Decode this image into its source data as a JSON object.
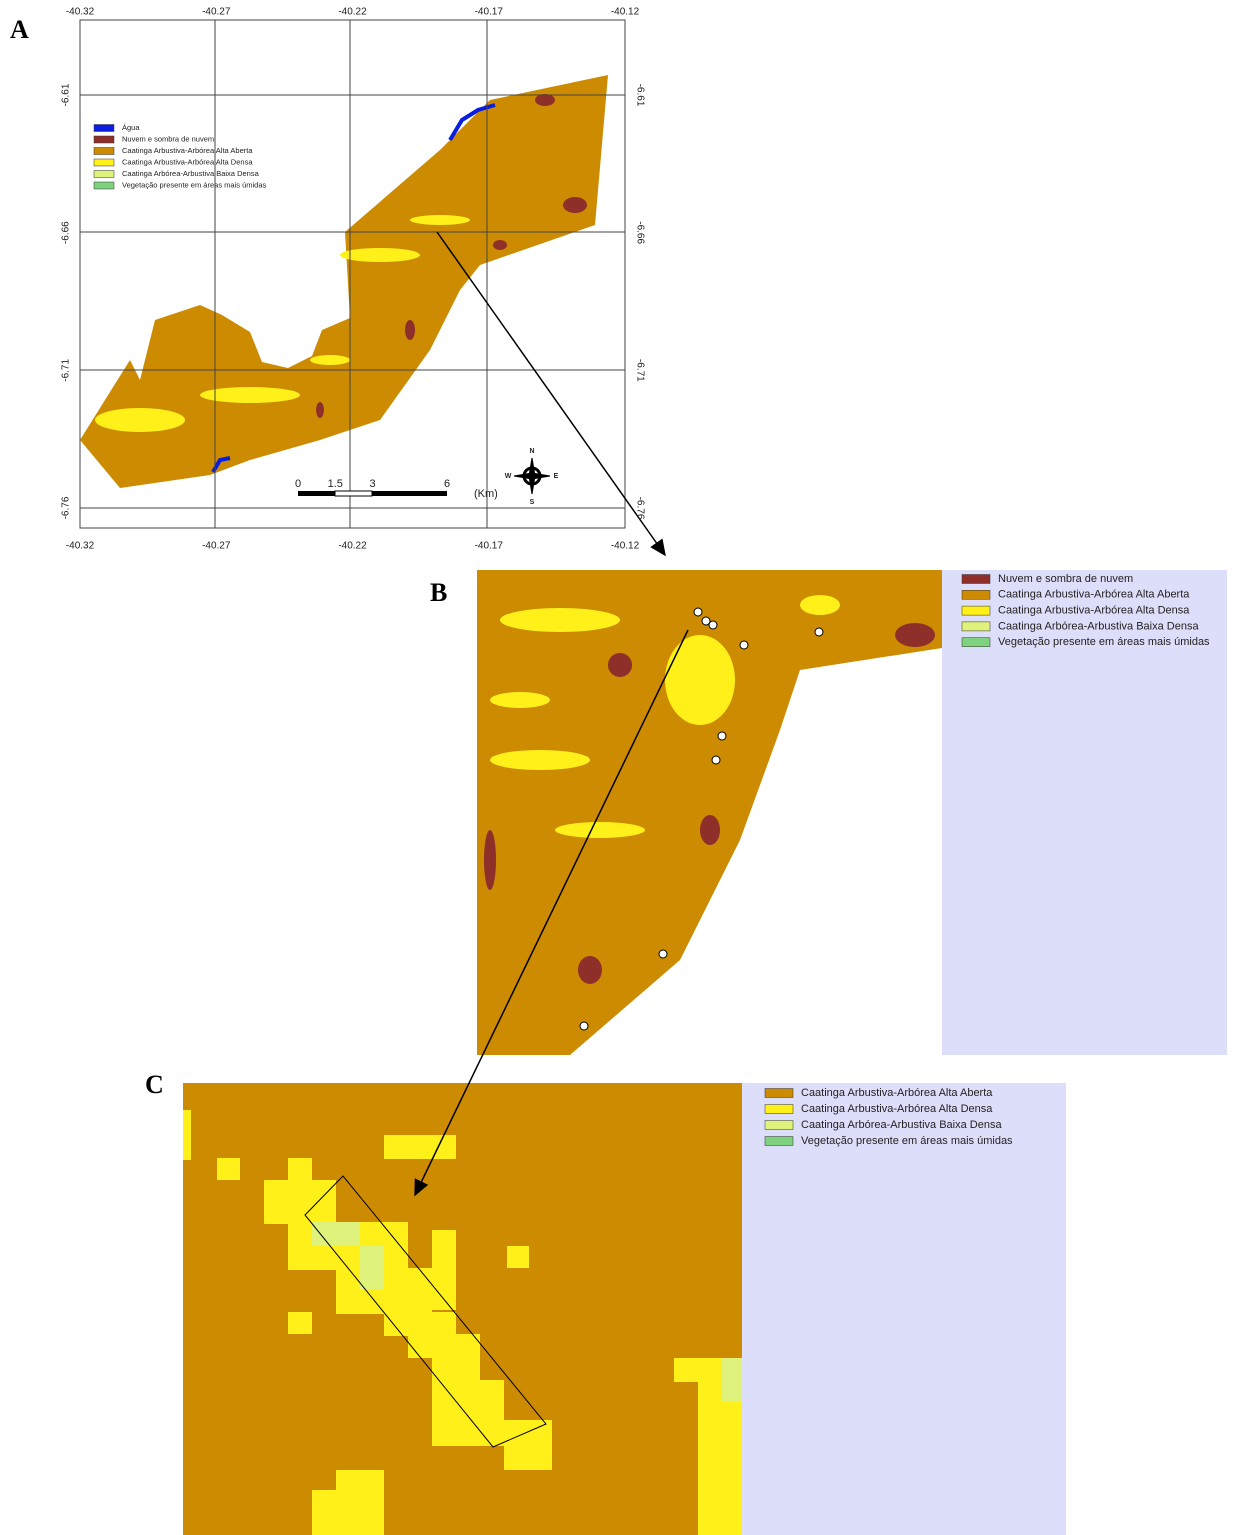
{
  "panels": {
    "a": {
      "label": "A",
      "x_ticks": [
        -40.32,
        -40.27,
        -40.22,
        -40.17,
        -40.12
      ],
      "y_ticks": [
        -6.61,
        -6.66,
        -6.71,
        -6.76
      ],
      "legend": [
        {
          "label": "Água",
          "color": "#0a1ee0"
        },
        {
          "label": "Nuvem e sombra de nuvem",
          "color": "#8e2f2a"
        },
        {
          "label": "Caatinga Arbustiva-Arbórea Alta Aberta",
          "color": "#cc8b00"
        },
        {
          "label": "Caatinga Arbustiva-Arbórea Alta Densa",
          "color": "#fff01a"
        },
        {
          "label": "Caatinga Arbórea-Arbustiva Baixa Densa",
          "color": "#dff27c"
        },
        {
          "label": "Vegetação presente em áreas mais úmidas",
          "color": "#7fd27f"
        }
      ],
      "scale_bar": {
        "ticks": [
          0,
          1.5,
          3,
          6
        ],
        "unit": "(Km)"
      },
      "compass": {
        "n": "N",
        "s": "S",
        "e": "E",
        "w": "W"
      }
    },
    "b": {
      "label": "B",
      "legend": [
        {
          "label": "Nuvem e sombra de nuvem",
          "color": "#8e2f2a"
        },
        {
          "label": "Caatinga Arbustiva-Arbórea Alta Aberta",
          "color": "#cc8b00"
        },
        {
          "label": "Caatinga Arbustiva-Arbórea Alta Densa",
          "color": "#fff01a"
        },
        {
          "label": "Caatinga Arbórea-Arbustiva Baixa Densa",
          "color": "#dff27c"
        },
        {
          "label": "Vegetação presente em áreas mais úmidas",
          "color": "#7fd27f"
        }
      ]
    },
    "c": {
      "label": "C",
      "legend": [
        {
          "label": "Caatinga Arbustiva-Arbórea Alta Aberta",
          "color": "#cc8b00"
        },
        {
          "label": "Caatinga Arbustiva-Arbórea Alta Densa",
          "color": "#fff01a"
        },
        {
          "label": "Caatinga Arbórea-Arbustiva Baixa Densa",
          "color": "#dff27c"
        },
        {
          "label": "Vegetação presente em áreas mais úmidas",
          "color": "#7fd27f"
        }
      ]
    }
  }
}
